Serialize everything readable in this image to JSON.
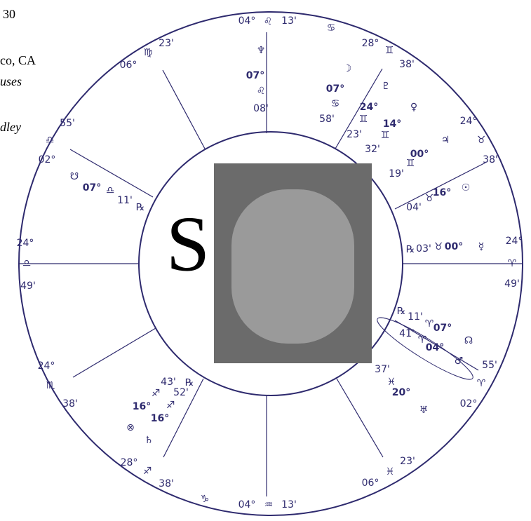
{
  "corner_text": [
    "30",
    "co, CA",
    "uses",
    "dley"
  ],
  "big_letter": "S",
  "labels": [
    "04°",
    "♌",
    "13'",
    "♋",
    "28°",
    "♊",
    "38'",
    "06°",
    "♍",
    "23'",
    "24°",
    "♉",
    "38'",
    "55'",
    "♎",
    "02°",
    "24°",
    "♎",
    "49'",
    "24°",
    "♈",
    "49'",
    "24°",
    "♏",
    "38'",
    "55'",
    "♈",
    "02°",
    "28°",
    "♐",
    "38'",
    "06°",
    "♓",
    "23'",
    "04°",
    "♒",
    "13'",
    "♑",
    "♆",
    "07°",
    "♌",
    "08'",
    "☽",
    "07°",
    "♋",
    "58'",
    "♇",
    "24°",
    "♊",
    "23'",
    "♀",
    "14°",
    "♊",
    "32'",
    "♃",
    "00°",
    "♊",
    "19'",
    "☉",
    "16°",
    "♉",
    "04'",
    "☿",
    "00°",
    "♉",
    "03'",
    "℞",
    "☊",
    "♂",
    "07°",
    "♈",
    "11'",
    "℞",
    "04°",
    "♈",
    "41'",
    "♅",
    "20°",
    "♓",
    "37'",
    "♄",
    "⊗",
    "16°",
    "♐",
    "43'",
    "16°",
    "♐",
    "52'",
    "℞",
    "☋",
    "07°",
    "♎",
    "11'",
    "℞"
  ]
}
